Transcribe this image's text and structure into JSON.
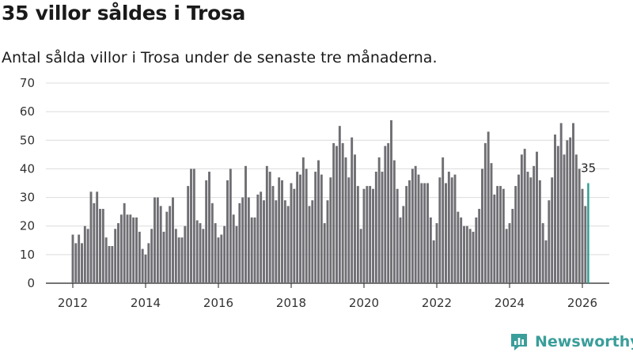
{
  "title": "35 villor såldes i Trosa",
  "subtitle": "Antal sålda villor i Trosa under de senaste tre månaderna.",
  "brand": "Newsworthy",
  "colors": {
    "bar": "#6e6e73",
    "highlight": "#2a9d8f",
    "brand": "#3a9e9a"
  },
  "chart_data": {
    "type": "bar",
    "start": "2012-01",
    "end": "2026-03",
    "ylim": [
      0,
      70
    ],
    "yticks": [
      0,
      10,
      20,
      30,
      40,
      50,
      60,
      70
    ],
    "xticks": [
      "2012",
      "2014",
      "2016",
      "2018",
      "2020",
      "2022",
      "2024",
      "2026"
    ],
    "highlight_index": 170,
    "last_label": "35",
    "values": [
      17,
      14,
      17,
      14,
      20,
      19,
      32,
      28,
      32,
      26,
      26,
      16,
      13,
      13,
      19,
      21,
      24,
      28,
      24,
      24,
      23,
      23,
      18,
      12,
      10,
      14,
      19,
      30,
      30,
      27,
      18,
      25,
      27,
      30,
      19,
      16,
      16,
      20,
      34,
      40,
      40,
      22,
      21,
      19,
      36,
      39,
      28,
      21,
      16,
      17,
      20,
      36,
      40,
      24,
      20,
      28,
      30,
      41,
      30,
      23,
      23,
      31,
      32,
      29,
      41,
      39,
      34,
      29,
      37,
      36,
      29,
      27,
      35,
      33,
      39,
      38,
      44,
      40,
      27,
      29,
      39,
      43,
      38,
      21,
      29,
      37,
      49,
      48,
      55,
      49,
      44,
      37,
      51,
      45,
      34,
      19,
      33,
      34,
      34,
      33,
      39,
      44,
      39,
      48,
      49,
      57,
      43,
      33,
      23,
      27,
      34,
      36,
      40,
      41,
      38,
      35,
      35,
      35,
      23,
      15,
      21,
      37,
      44,
      35,
      39,
      37,
      38,
      25,
      23,
      20,
      20,
      19,
      18,
      23,
      26,
      40,
      49,
      53,
      42,
      31,
      34,
      34,
      33,
      19,
      21,
      26,
      34,
      38,
      45,
      47,
      39,
      37,
      41,
      46,
      36,
      21,
      15,
      29,
      37,
      52,
      48,
      56,
      45,
      50,
      51,
      56,
      45,
      40,
      33,
      27,
      35
    ]
  }
}
